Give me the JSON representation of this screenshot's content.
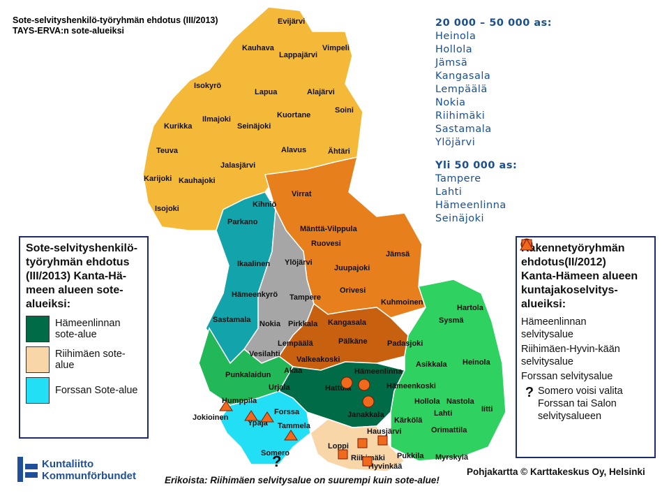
{
  "title": "Sote-selvityshenkilö-työryhmän ehdotus (III/2013) TAYS-ERVA:n sote-alueiksi",
  "left_box": {
    "title_lines": [
      "Sote-selvityshenkilö-",
      "työryhmän ehdotus",
      "(III/2013) Kanta-Hä-",
      "meen alueen sote-",
      "alueiksi:"
    ],
    "legend": [
      {
        "label": "Hämeenlinnan sote-alue",
        "color": "#006b47"
      },
      {
        "label": "Riihimäen sote-alue",
        "color": "#f8d6a8"
      },
      {
        "label": "Forssan Sote-alue",
        "color": "#22dff5"
      }
    ]
  },
  "population_list": [
    {
      "heading": "20 000 – 50 000 as:",
      "items": [
        "Heinola",
        "Hollola",
        "Jämsä",
        "Kangasala",
        "Lempäälä",
        "Nokia",
        "Riihimäki",
        "Sastamala",
        "Ylöjärvi"
      ]
    },
    {
      "heading": "Yli 50 000 as:",
      "items": [
        "Tampere",
        "Lahti",
        "Hämeenlinna",
        "Seinäjoki"
      ]
    }
  ],
  "right_box": {
    "title_lines": [
      "Rakennetyöryhmän",
      "ehdotus(II/2012)",
      "Kanta-Hämeen alueen",
      "kuntajakoselvitys-",
      "alueiksi:"
    ],
    "legend": [
      {
        "label": "Hämeenlinnan selvitysalue"
      },
      {
        "label": "Riihimäen-Hyvin-kään selvitysalue"
      },
      {
        "label": "Forssan selvitysalue"
      },
      {
        "symbol": "?",
        "label": "Somero voisi valita Forssan tai Salon selvitysalueen"
      }
    ]
  },
  "map_labels": [
    "Evijärvi",
    "Kauhava",
    "Lappajärvi",
    "Vimpeli",
    "Isokyrö",
    "Lapua",
    "Alajärvi",
    "Soini",
    "Kurikka",
    "Ilmajoki",
    "Seinäjoki",
    "Kuortane",
    "Teuva",
    "Alavus",
    "Ähtäri",
    "Jalasjärvi",
    "Karijoki",
    "Kauhajoki",
    "Virrat",
    "Isojoki",
    "Kihniö",
    "Parkano",
    "Mänttä-Vilppula",
    "Ruovesi",
    "Jämsä",
    "Ikaalinen",
    "Ylöjärvi",
    "Juupajoki",
    "Hämeenkyrö",
    "Tampere",
    "Orivesi",
    "Kuhmoinen",
    "Hartola",
    "Sastamala",
    "Nokia",
    "Pirkkala",
    "Kangasala",
    "Sysmä",
    "Lempäälä",
    "Pälkäne",
    "Padasjoki",
    "Vesilahti",
    "Valkeakoski",
    "Asikkala",
    "Heinola",
    "Hämeenlinna",
    "Akaa",
    "Punkalaidun",
    "Urjala",
    "Hattula",
    "Hämeenkoski",
    "Humppila",
    "Hollola",
    "Nastola",
    "Forssa",
    "Jokioinen",
    "Janakkala",
    "Lahti",
    "Iitti",
    "Ypäjä",
    "Tammela",
    "Kärkölä",
    "Orimattila",
    "Hausjärvi",
    "Loppi",
    "Somero",
    "Riihimäki",
    "Pukkila",
    "Myrskylä",
    "Hyvinkää"
  ],
  "map_question": "?",
  "note": "Erikoista: Riihimäen selvitysalue on suurempi kuin sote-alue!",
  "credit": "Pohjakartta © Karttakeskus Oy, Helsinki",
  "logo": [
    "Kuntaliitto",
    "Kommunförbundet"
  ]
}
